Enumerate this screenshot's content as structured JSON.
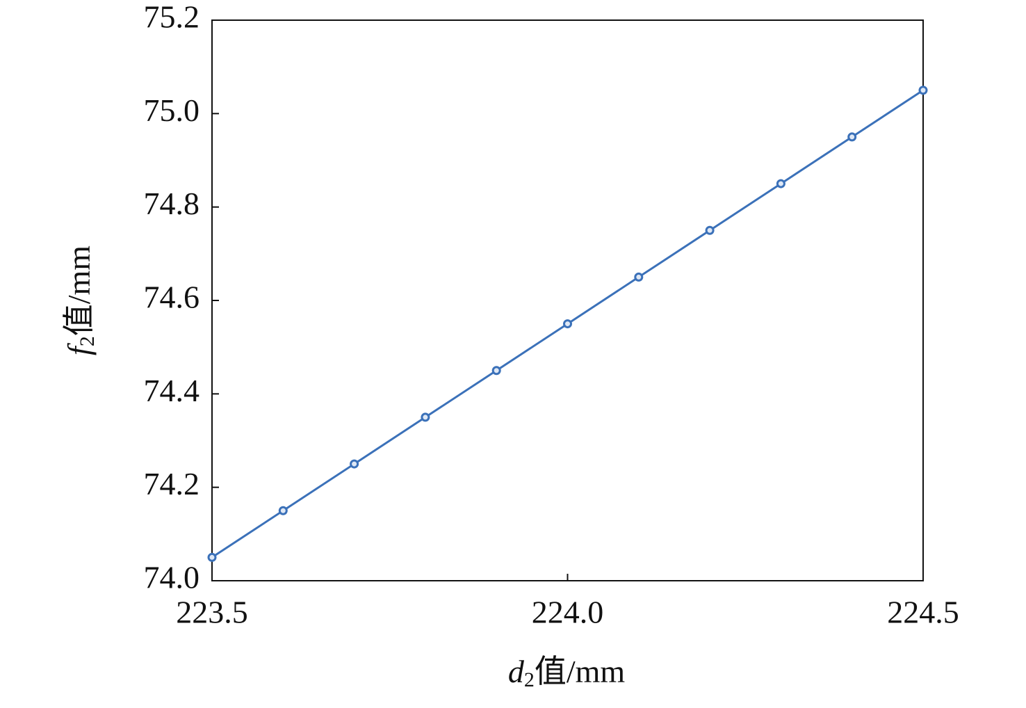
{
  "chart_data": {
    "type": "line",
    "xlabel": [
      "d",
      "2",
      "值/mm"
    ],
    "ylabel": [
      "f",
      "2",
      "值/mm"
    ],
    "x": [
      223.5,
      223.6,
      223.7,
      223.8,
      223.9,
      224.0,
      224.1,
      224.2,
      224.3,
      224.4,
      224.5
    ],
    "values": [
      74.05,
      74.15,
      74.25,
      74.35,
      74.45,
      74.55,
      74.65,
      74.75,
      74.85,
      74.95,
      75.05
    ],
    "color": "#3b71b9",
    "xlim": [
      223.5,
      224.5
    ],
    "xticks": [
      223.5,
      {
        "value": 224,
        "label": "224.0"
      },
      224.5
    ],
    "ylim": [
      74,
      75.2
    ],
    "yticks": [
      {
        "value": 74,
        "label": "74.0"
      },
      74.2,
      74.4,
      74.6,
      74.8,
      {
        "value": 75,
        "label": "75.0"
      },
      75.2
    ]
  }
}
